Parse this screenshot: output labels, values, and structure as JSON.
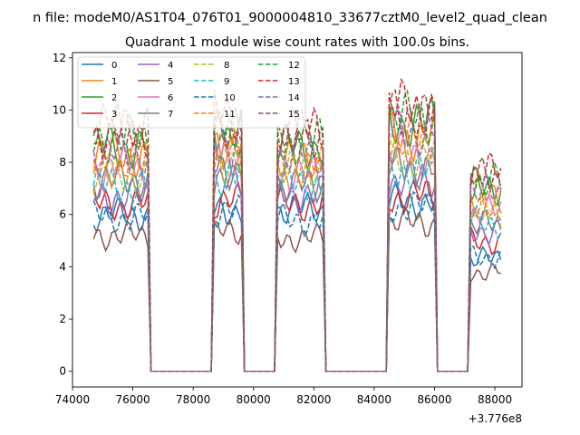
{
  "figure": {
    "suptitle": "n file: modeM0/AS1T04_076T01_9000004810_33677cztM0_level2_quad_clean"
  },
  "chart_data": {
    "type": "line",
    "title": "Quadrant 1 module wise count rates with 100.0s bins.",
    "xlabel": "",
    "ylabel": "",
    "x_offset_label": "+3.776e8",
    "xlim": [
      74000,
      88900
    ],
    "ylim": [
      -0.6,
      12.2
    ],
    "x_ticks": [
      74000,
      76000,
      78000,
      80000,
      82000,
      84000,
      86000,
      88000
    ],
    "y_ticks": [
      0,
      2,
      4,
      6,
      8,
      10,
      12
    ],
    "grid": false,
    "legend_position": "upper-left",
    "legend_columns": 4,
    "segments": [
      {
        "start": 74700,
        "end": 76500
      },
      {
        "start": 78700,
        "end": 79600
      },
      {
        "start": 80800,
        "end": 82300
      },
      {
        "start": 84500,
        "end": 86000
      },
      {
        "start": 87200,
        "end": 88200
      }
    ],
    "series": [
      {
        "name": "0",
        "color": "#1f77b4",
        "dash": "solid",
        "levels": [
          6.0,
          6.2,
          6.2,
          6.5,
          4.3
        ]
      },
      {
        "name": "1",
        "color": "#ff7f0e",
        "dash": "solid",
        "levels": [
          8.3,
          8.7,
          8.1,
          9.0,
          6.8
        ]
      },
      {
        "name": "2",
        "color": "#2ca02c",
        "dash": "solid",
        "levels": [
          8.6,
          9.0,
          8.6,
          9.5,
          7.1
        ]
      },
      {
        "name": "3",
        "color": "#d62728",
        "dash": "solid",
        "levels": [
          6.4,
          6.5,
          6.4,
          6.7,
          5.0
        ]
      },
      {
        "name": "4",
        "color": "#9467bd",
        "dash": "solid",
        "levels": [
          6.7,
          7.2,
          6.8,
          7.3,
          5.4
        ]
      },
      {
        "name": "5",
        "color": "#8c564b",
        "dash": "solid",
        "levels": [
          5.2,
          5.3,
          5.1,
          5.7,
          3.8
        ]
      },
      {
        "name": "6",
        "color": "#e377c2",
        "dash": "solid",
        "levels": [
          7.8,
          8.2,
          7.5,
          8.3,
          6.1
        ]
      },
      {
        "name": "7",
        "color": "#7f7f7f",
        "dash": "solid",
        "levels": [
          7.3,
          7.8,
          7.1,
          7.8,
          5.6
        ]
      },
      {
        "name": "8",
        "color": "#bcbd22",
        "dash": "dashed",
        "levels": [
          7.5,
          8.0,
          7.7,
          8.2,
          6.1
        ]
      },
      {
        "name": "9",
        "color": "#17becf",
        "dash": "dashed",
        "levels": [
          7.1,
          7.5,
          7.2,
          7.7,
          5.7
        ]
      },
      {
        "name": "10",
        "color": "#1f77b4",
        "dash": "dashed",
        "levels": [
          5.9,
          6.1,
          5.8,
          6.3,
          4.4
        ]
      },
      {
        "name": "11",
        "color": "#ff7f0e",
        "dash": "dashed",
        "levels": [
          7.9,
          8.4,
          7.9,
          8.8,
          6.5
        ]
      },
      {
        "name": "12",
        "color": "#2ca02c",
        "dash": "dashed",
        "levels": [
          8.9,
          9.1,
          8.8,
          9.7,
          7.3
        ]
      },
      {
        "name": "13",
        "color": "#d62728",
        "dash": "dashed",
        "levels": [
          9.1,
          9.8,
          9.2,
          10.1,
          7.6
        ]
      },
      {
        "name": "14",
        "color": "#9467bd",
        "dash": "dashed",
        "levels": [
          8.3,
          8.8,
          8.3,
          9.2,
          6.8
        ]
      },
      {
        "name": "15",
        "color": "#8c564b",
        "dash": "dashed",
        "levels": [
          9.4,
          9.6,
          9.1,
          9.9,
          7.4
        ]
      }
    ]
  }
}
